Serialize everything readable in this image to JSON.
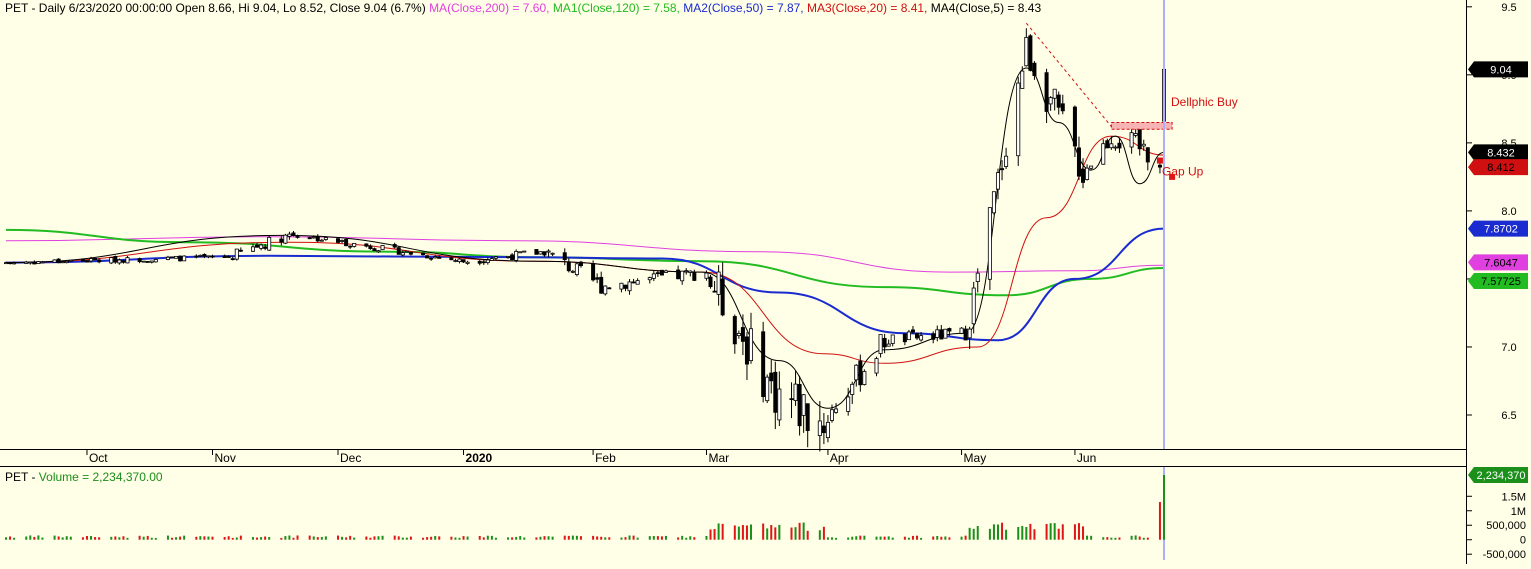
{
  "colors": {
    "background": "#fffee6",
    "up_candle": "#ffffff",
    "down_candle": "#000000",
    "ma_200": "#e040e0",
    "ma1_120": "#22bb22",
    "ma2_50": "#1a2bd0",
    "ma3_20": "#d01010",
    "ma4_5": "#000000",
    "cursor_line": "#aab0ff",
    "volume_up": "#1a8f1a",
    "volume_down": "#e01515"
  },
  "header": {
    "prefix": "PET - Daily 6/23/2020 00:00:00 Open 8.66, Hi 9.04, Lo 8.52, Close 9.04 (6.7%)",
    "ma_200": "MA(Close,200) = 7.60,",
    "ma1_120": "MA1(Close,120) = 7.58,",
    "ma2_50": "MA2(Close,50) = 7.87,",
    "ma3_20": "MA3(Close,20) = 8.41,",
    "ma4_5": "MA4(Close,5) = 8.43"
  },
  "volume_header": {
    "prefix": "PET - ",
    "label": "Volume = 2,234,370.00"
  },
  "annotations": {
    "dellphic": "Dellphic Buy",
    "gap": "Gap Up"
  },
  "badges": {
    "close": "9.04",
    "ma4": "8.432",
    "ma3": "8.412",
    "ma2": "7.8702",
    "ma200": "7.6047",
    "ma1": "7.57725",
    "volume": "2,234,370"
  },
  "chart_data": {
    "type": "candlestick",
    "title": "",
    "price_axis": {
      "ticks": [
        6.5,
        7.0,
        7.5,
        8.0,
        8.5,
        9.0,
        9.5
      ],
      "labels": [
        "6.5",
        "7.0",
        "7.5",
        "8.0",
        "8.5",
        "9.0",
        "9.5"
      ],
      "range": [
        6.25,
        9.55
      ]
    },
    "volume_axis": {
      "ticks": [
        -500000,
        0,
        500000,
        1000000,
        1500000
      ],
      "labels": [
        "-500,000",
        "0",
        "500,000",
        "1M",
        "1.5M"
      ],
      "range": [
        -700000,
        2234370
      ]
    },
    "x_axis": {
      "labels": [
        "Oct",
        "Nov",
        "Dec",
        "2020",
        "Feb",
        "Mar",
        "Apr",
        "May",
        "Jun"
      ],
      "label_positions": [
        "2019-10-01",
        "2019-11-01",
        "2019-12-02",
        "2020-01-02",
        "2020-02-03",
        "2020-03-02",
        "2020-04-01",
        "2020-05-04",
        "2020-06-01"
      ]
    },
    "x_range": [
      "2019-09-11",
      "2020-06-23"
    ],
    "ohlc_segments": [
      {
        "start": "2019-09-11",
        "end": "2019-11-05",
        "start_close": 7.62,
        "end_close": 7.66,
        "noise": 0.02
      },
      {
        "start": "2019-11-05",
        "end": "2019-11-20",
        "start_close": 7.66,
        "end_close": 7.83,
        "noise": 0.04
      },
      {
        "start": "2019-11-20",
        "end": "2020-01-02",
        "start_close": 7.83,
        "end_close": 7.63,
        "noise": 0.025
      },
      {
        "start": "2020-01-02",
        "end": "2020-01-22",
        "start_close": 7.63,
        "end_close": 7.7,
        "noise": 0.03
      },
      {
        "start": "2020-01-22",
        "end": "2020-02-05",
        "start_close": 7.7,
        "end_close": 7.45,
        "noise": 0.06
      },
      {
        "start": "2020-02-05",
        "end": "2020-03-02",
        "start_close": 7.45,
        "end_close": 7.55,
        "noise": 0.05
      },
      {
        "start": "2020-03-02",
        "end": "2020-03-18",
        "start_close": 7.55,
        "end_close": 6.7,
        "noise": 0.18
      },
      {
        "start": "2020-03-18",
        "end": "2020-03-31",
        "start_close": 6.7,
        "end_close": 6.45,
        "noise": 0.22
      },
      {
        "start": "2020-03-31",
        "end": "2020-04-15",
        "start_close": 6.45,
        "end_close": 7.05,
        "noise": 0.1
      },
      {
        "start": "2020-04-15",
        "end": "2020-05-05",
        "start_close": 7.05,
        "end_close": 7.1,
        "noise": 0.05
      },
      {
        "start": "2020-05-05",
        "end": "2020-05-20",
        "start_close": 7.1,
        "end_close": 9.2,
        "noise": 0.12
      },
      {
        "start": "2020-05-20",
        "end": "2020-06-03",
        "start_close": 9.2,
        "end_close": 8.3,
        "noise": 0.15
      },
      {
        "start": "2020-06-03",
        "end": "2020-06-10",
        "start_close": 8.3,
        "end_close": 8.55,
        "noise": 0.08
      },
      {
        "start": "2020-06-10",
        "end": "2020-06-22",
        "start_close": 8.55,
        "end_close": 8.4,
        "noise": 0.1
      }
    ],
    "last_bar": {
      "date": "2020-06-23",
      "open": 8.66,
      "high": 9.04,
      "low": 8.52,
      "close": 9.04,
      "volume": 2234370
    },
    "previous_bar": {
      "date": "2020-06-22",
      "volume": 1300000
    },
    "ma_series": [
      {
        "key": "ma_200",
        "points": [
          [
            "2019-09-11",
            7.78
          ],
          [
            "2019-11-15",
            7.81
          ],
          [
            "2020-01-15",
            7.78
          ],
          [
            "2020-03-15",
            7.7
          ],
          [
            "2020-05-01",
            7.55
          ],
          [
            "2020-06-01",
            7.56
          ],
          [
            "2020-06-23",
            7.6
          ]
        ]
      },
      {
        "key": "ma1_120",
        "points": [
          [
            "2019-09-11",
            7.86
          ],
          [
            "2019-10-25",
            7.77
          ],
          [
            "2019-12-15",
            7.7
          ],
          [
            "2020-01-20",
            7.66
          ],
          [
            "2020-03-01",
            7.63
          ],
          [
            "2020-04-15",
            7.44
          ],
          [
            "2020-05-15",
            7.38
          ],
          [
            "2020-06-05",
            7.5
          ],
          [
            "2020-06-23",
            7.58
          ]
        ]
      },
      {
        "key": "ma2_50",
        "points": [
          [
            "2019-09-11",
            7.62
          ],
          [
            "2019-11-15",
            7.67
          ],
          [
            "2020-01-15",
            7.66
          ],
          [
            "2020-02-20",
            7.65
          ],
          [
            "2020-03-20",
            7.4
          ],
          [
            "2020-04-20",
            7.1
          ],
          [
            "2020-05-13",
            7.05
          ],
          [
            "2020-06-01",
            7.5
          ],
          [
            "2020-06-23",
            7.87
          ]
        ]
      },
      {
        "key": "ma3_20",
        "points": [
          [
            "2019-09-11",
            7.62
          ],
          [
            "2019-11-20",
            7.77
          ],
          [
            "2020-01-20",
            7.63
          ],
          [
            "2020-03-01",
            7.55
          ],
          [
            "2020-03-31",
            6.95
          ],
          [
            "2020-04-15",
            6.88
          ],
          [
            "2020-05-08",
            7.0
          ],
          [
            "2020-05-25",
            7.95
          ],
          [
            "2020-06-10",
            8.55
          ],
          [
            "2020-06-23",
            8.41
          ]
        ]
      },
      {
        "key": "ma4_5",
        "points": [
          [
            "2019-09-11",
            7.62
          ],
          [
            "2019-11-18",
            7.82
          ],
          [
            "2020-01-20",
            7.63
          ],
          [
            "2020-03-01",
            7.55
          ],
          [
            "2020-03-20",
            6.9
          ],
          [
            "2020-04-01",
            6.55
          ],
          [
            "2020-04-15",
            6.98
          ],
          [
            "2020-05-05",
            7.1
          ],
          [
            "2020-05-20",
            9.05
          ],
          [
            "2020-05-28",
            8.65
          ],
          [
            "2020-06-05",
            8.3
          ],
          [
            "2020-06-11",
            8.55
          ],
          [
            "2020-06-17",
            8.2
          ],
          [
            "2020-06-23",
            8.43
          ]
        ]
      }
    ],
    "trendline": {
      "from": [
        "2020-05-20",
        9.38
      ],
      "to": [
        "2020-06-10",
        8.62
      ]
    },
    "zone": {
      "start": "2020-06-10",
      "end": "2020-06-25",
      "low": 8.6,
      "high": 8.65
    },
    "cursor_date": "2020-06-23",
    "dellphic_label_at": [
      "2020-06-23",
      8.8
    ],
    "gap_up_label_at": [
      "2020-06-22",
      8.29
    ],
    "gap_markers": [
      [
        "2020-06-22",
        8.37
      ],
      [
        "2020-06-25",
        8.25
      ]
    ]
  }
}
